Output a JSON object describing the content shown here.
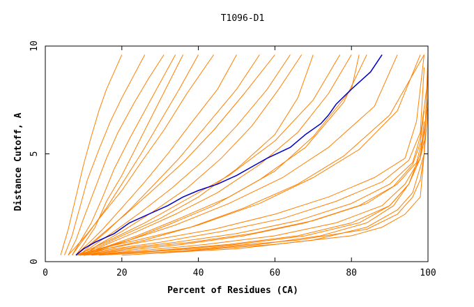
{
  "chart_data": {
    "type": "line",
    "title": "T1096-D1",
    "xlabel": "Percent of Residues (CA)",
    "ylabel": "Distance Cutoff, A",
    "xlim": [
      0,
      100
    ],
    "ylim": [
      0,
      10
    ],
    "x_ticks": [
      0,
      20,
      40,
      60,
      80,
      100
    ],
    "y_ticks": [
      0,
      5,
      10
    ],
    "grid": false,
    "colors": {
      "models": "#ff8000",
      "highlight": "#0000cc",
      "axes": "#000000"
    },
    "highlighted_series": {
      "x": [
        8,
        10,
        13,
        18,
        22,
        27,
        32,
        36,
        40,
        45,
        50,
        55,
        58,
        64,
        68,
        72,
        74,
        76,
        80,
        85,
        88
      ],
      "y": [
        0.3,
        0.6,
        0.9,
        1.3,
        1.8,
        2.2,
        2.6,
        3.0,
        3.3,
        3.6,
        4.0,
        4.5,
        4.8,
        5.3,
        5.9,
        6.4,
        6.8,
        7.3,
        8.0,
        8.8,
        9.6
      ]
    },
    "model_series": [
      {
        "x": [
          4,
          6,
          8,
          10,
          12,
          14,
          16,
          18,
          20
        ],
        "y": [
          0.3,
          1.5,
          3.0,
          4.5,
          5.8,
          7.0,
          8.0,
          8.8,
          9.6
        ]
      },
      {
        "x": [
          5,
          7,
          9,
          11,
          14,
          17,
          20,
          23,
          26
        ],
        "y": [
          0.3,
          1.2,
          2.5,
          3.8,
          5.2,
          6.5,
          7.6,
          8.6,
          9.6
        ]
      },
      {
        "x": [
          6,
          8,
          10,
          13,
          16,
          19,
          23,
          27,
          31
        ],
        "y": [
          0.3,
          1.0,
          2.0,
          3.4,
          4.8,
          6.0,
          7.3,
          8.5,
          9.6
        ]
      },
      {
        "x": [
          7,
          9,
          12,
          15,
          18,
          22,
          26,
          30,
          34
        ],
        "y": [
          0.3,
          0.9,
          1.8,
          3.0,
          4.3,
          5.7,
          7.0,
          8.3,
          9.6
        ]
      },
      {
        "x": [
          8,
          10,
          13,
          16,
          20,
          24,
          28,
          32,
          36
        ],
        "y": [
          0.3,
          0.8,
          1.6,
          2.8,
          4.0,
          5.4,
          6.8,
          8.2,
          9.6
        ]
      },
      {
        "x": [
          7,
          9,
          12,
          16,
          20,
          25,
          30,
          35,
          40
        ],
        "y": [
          0.3,
          0.8,
          1.5,
          2.5,
          3.6,
          5.0,
          6.5,
          8.0,
          9.6
        ]
      },
      {
        "x": [
          6,
          8,
          11,
          15,
          20,
          25,
          31,
          37,
          44
        ],
        "y": [
          0.3,
          0.7,
          1.3,
          2.2,
          3.3,
          4.6,
          6.1,
          7.8,
          9.6
        ]
      },
      {
        "x": [
          8,
          11,
          15,
          20,
          26,
          32,
          38,
          45,
          50
        ],
        "y": [
          0.3,
          0.8,
          1.5,
          2.5,
          3.7,
          5.0,
          6.4,
          8.0,
          9.6
        ]
      },
      {
        "x": [
          9,
          12,
          16,
          22,
          28,
          35,
          42,
          50,
          56
        ],
        "y": [
          0.3,
          0.8,
          1.4,
          2.4,
          3.5,
          4.8,
          6.3,
          8.0,
          9.6
        ]
      },
      {
        "x": [
          8,
          11,
          15,
          21,
          28,
          36,
          44,
          52,
          60
        ],
        "y": [
          0.3,
          0.7,
          1.3,
          2.2,
          3.3,
          4.6,
          6.1,
          7.8,
          9.6
        ]
      },
      {
        "x": [
          9,
          13,
          18,
          25,
          33,
          42,
          50,
          58,
          64
        ],
        "y": [
          0.3,
          0.8,
          1.4,
          2.3,
          3.4,
          4.8,
          6.3,
          8.0,
          9.6
        ]
      },
      {
        "x": [
          10,
          14,
          20,
          28,
          37,
          46,
          54,
          61,
          67
        ],
        "y": [
          0.3,
          0.8,
          1.4,
          2.3,
          3.4,
          4.8,
          6.3,
          8.0,
          9.6
        ]
      },
      {
        "x": [
          9,
          14,
          20,
          30,
          40,
          50,
          60,
          66,
          70
        ],
        "y": [
          0.3,
          0.7,
          1.2,
          2.0,
          3.0,
          4.3,
          5.9,
          7.6,
          9.6
        ]
      },
      {
        "x": [
          10,
          16,
          24,
          34,
          45,
          56,
          66,
          74,
          80
        ],
        "y": [
          0.3,
          0.8,
          1.4,
          2.2,
          3.2,
          4.5,
          6.0,
          7.8,
          9.6
        ]
      },
      {
        "x": [
          8,
          12,
          18,
          26,
          36,
          48,
          60,
          70,
          77
        ],
        "y": [
          0.3,
          0.6,
          1.1,
          1.8,
          2.8,
          4.0,
          5.6,
          7.5,
          9.6
        ]
      },
      {
        "x": [
          10,
          16,
          24,
          35,
          48,
          60,
          70,
          80,
          82
        ],
        "y": [
          0.3,
          0.7,
          1.2,
          2.0,
          3.0,
          4.2,
          5.8,
          8.0,
          9.6
        ]
      },
      {
        "x": [
          9,
          15,
          22,
          32,
          44,
          56,
          68,
          78,
          84
        ],
        "y": [
          0.3,
          0.6,
          1.0,
          1.7,
          2.6,
          3.8,
          5.3,
          7.4,
          9.6
        ]
      },
      {
        "x": [
          8,
          14,
          22,
          34,
          48,
          62,
          74,
          86,
          92
        ],
        "y": [
          0.3,
          0.6,
          1.0,
          1.7,
          2.7,
          3.9,
          5.3,
          7.2,
          9.6
        ]
      },
      {
        "x": [
          9,
          16,
          26,
          40,
          56,
          70,
          82,
          92,
          98
        ],
        "y": [
          0.3,
          0.6,
          1.0,
          1.7,
          2.7,
          3.9,
          5.2,
          7.0,
          9.6
        ]
      },
      {
        "x": [
          8,
          14,
          24,
          38,
          52,
          66,
          78,
          90,
          99
        ],
        "y": [
          0.3,
          0.6,
          1.0,
          1.6,
          2.5,
          3.6,
          4.9,
          6.8,
          9.6
        ]
      },
      {
        "x": [
          8,
          16,
          28,
          44,
          60,
          74,
          86,
          94,
          97,
          99
        ],
        "y": [
          0.3,
          0.6,
          1.0,
          1.5,
          2.2,
          3.0,
          3.9,
          4.8,
          6.5,
          9.6
        ]
      },
      {
        "x": [
          8,
          18,
          30,
          46,
          62,
          76,
          88,
          95,
          98,
          99
        ],
        "y": [
          0.3,
          0.6,
          0.9,
          1.4,
          2.0,
          2.8,
          3.7,
          4.7,
          6.0,
          9.0
        ]
      },
      {
        "x": [
          9,
          20,
          34,
          50,
          66,
          80,
          90,
          96,
          98,
          100
        ],
        "y": [
          0.3,
          0.6,
          0.9,
          1.3,
          1.9,
          2.7,
          3.6,
          4.6,
          5.8,
          8.5
        ]
      },
      {
        "x": [
          10,
          22,
          38,
          54,
          70,
          84,
          92,
          97,
          99,
          100
        ],
        "y": [
          0.3,
          0.6,
          0.9,
          1.3,
          1.9,
          2.7,
          3.6,
          4.6,
          6.0,
          7.6
        ]
      },
      {
        "x": [
          8,
          20,
          36,
          52,
          68,
          82,
          91,
          96,
          98,
          99
        ],
        "y": [
          0.3,
          0.5,
          0.8,
          1.2,
          1.8,
          2.6,
          3.5,
          4.5,
          5.5,
          7.0
        ]
      },
      {
        "x": [
          9,
          24,
          42,
          60,
          76,
          88,
          94,
          98,
          99
        ],
        "y": [
          0.3,
          0.5,
          0.8,
          1.2,
          1.8,
          2.6,
          3.6,
          4.8,
          6.5
        ]
      },
      {
        "x": [
          10,
          28,
          48,
          66,
          80,
          90,
          95,
          98,
          100
        ],
        "y": [
          0.3,
          0.5,
          0.8,
          1.2,
          1.8,
          2.6,
          3.6,
          5.0,
          7.2
        ]
      },
      {
        "x": [
          12,
          30,
          50,
          68,
          82,
          90,
          95,
          98,
          99
        ],
        "y": [
          0.3,
          0.5,
          0.8,
          1.2,
          1.8,
          2.6,
          3.6,
          4.8,
          6.0
        ]
      },
      {
        "x": [
          14,
          36,
          56,
          72,
          84,
          91,
          95,
          98,
          99
        ],
        "y": [
          0.3,
          0.5,
          0.8,
          1.2,
          1.8,
          2.6,
          3.6,
          4.8,
          5.6
        ]
      },
      {
        "x": [
          10,
          40,
          66,
          84,
          92,
          96,
          98,
          99,
          100
        ],
        "y": [
          0.3,
          0.6,
          1.0,
          1.5,
          2.2,
          3.0,
          3.8,
          5.0,
          7.0
        ]
      },
      {
        "x": [
          20,
          50,
          70,
          84,
          92,
          96,
          99,
          100
        ],
        "y": [
          0.3,
          0.6,
          1.0,
          1.6,
          2.4,
          3.2,
          5.0,
          9.0
        ]
      },
      {
        "x": [
          30,
          60,
          80,
          88,
          94,
          98,
          99,
          100
        ],
        "y": [
          0.4,
          0.8,
          1.2,
          1.6,
          2.2,
          3.0,
          5.0,
          9.6
        ]
      }
    ]
  }
}
